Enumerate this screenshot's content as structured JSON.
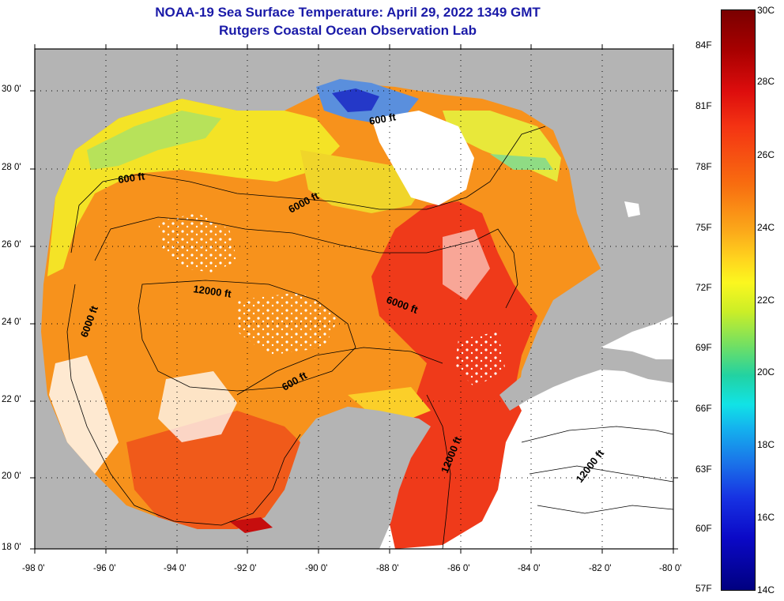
{
  "title_line1": "NOAA-19 Sea Surface Temperature:  April 29, 2022 1349 GMT",
  "title_line2": "Rutgers Coastal Ocean Observation Lab",
  "latitudes": [
    "30 0'",
    "28 0'",
    "26 0'",
    "24 0'",
    "22 0'",
    "20 0'",
    "18 0'"
  ],
  "longitudes": [
    "-98 0'",
    "-96 0'",
    "-94 0'",
    "-92 0'",
    "-90 0'",
    "-88 0'",
    "-86 0'",
    "-84 0'",
    "-82 0'",
    "-80 0'"
  ],
  "contour_labels": [
    "600 ft",
    "600 ft",
    "600 ft",
    "6000 ft",
    "6000 ft",
    "6000 ft",
    "12000 ft",
    "12000 ft",
    "12000 ft"
  ],
  "colorbar": {
    "fahrenheit": [
      "84F",
      "81F",
      "78F",
      "75F",
      "72F",
      "69F",
      "66F",
      "63F",
      "60F",
      "57F"
    ],
    "celsius": [
      "30C",
      "28C",
      "26C",
      "24C",
      "22C",
      "20C",
      "18C",
      "16C",
      "14C"
    ]
  },
  "colors": {
    "land": "#b4b4b4",
    "cloud": "#ffffff",
    "title": "#1a1aa8"
  }
}
